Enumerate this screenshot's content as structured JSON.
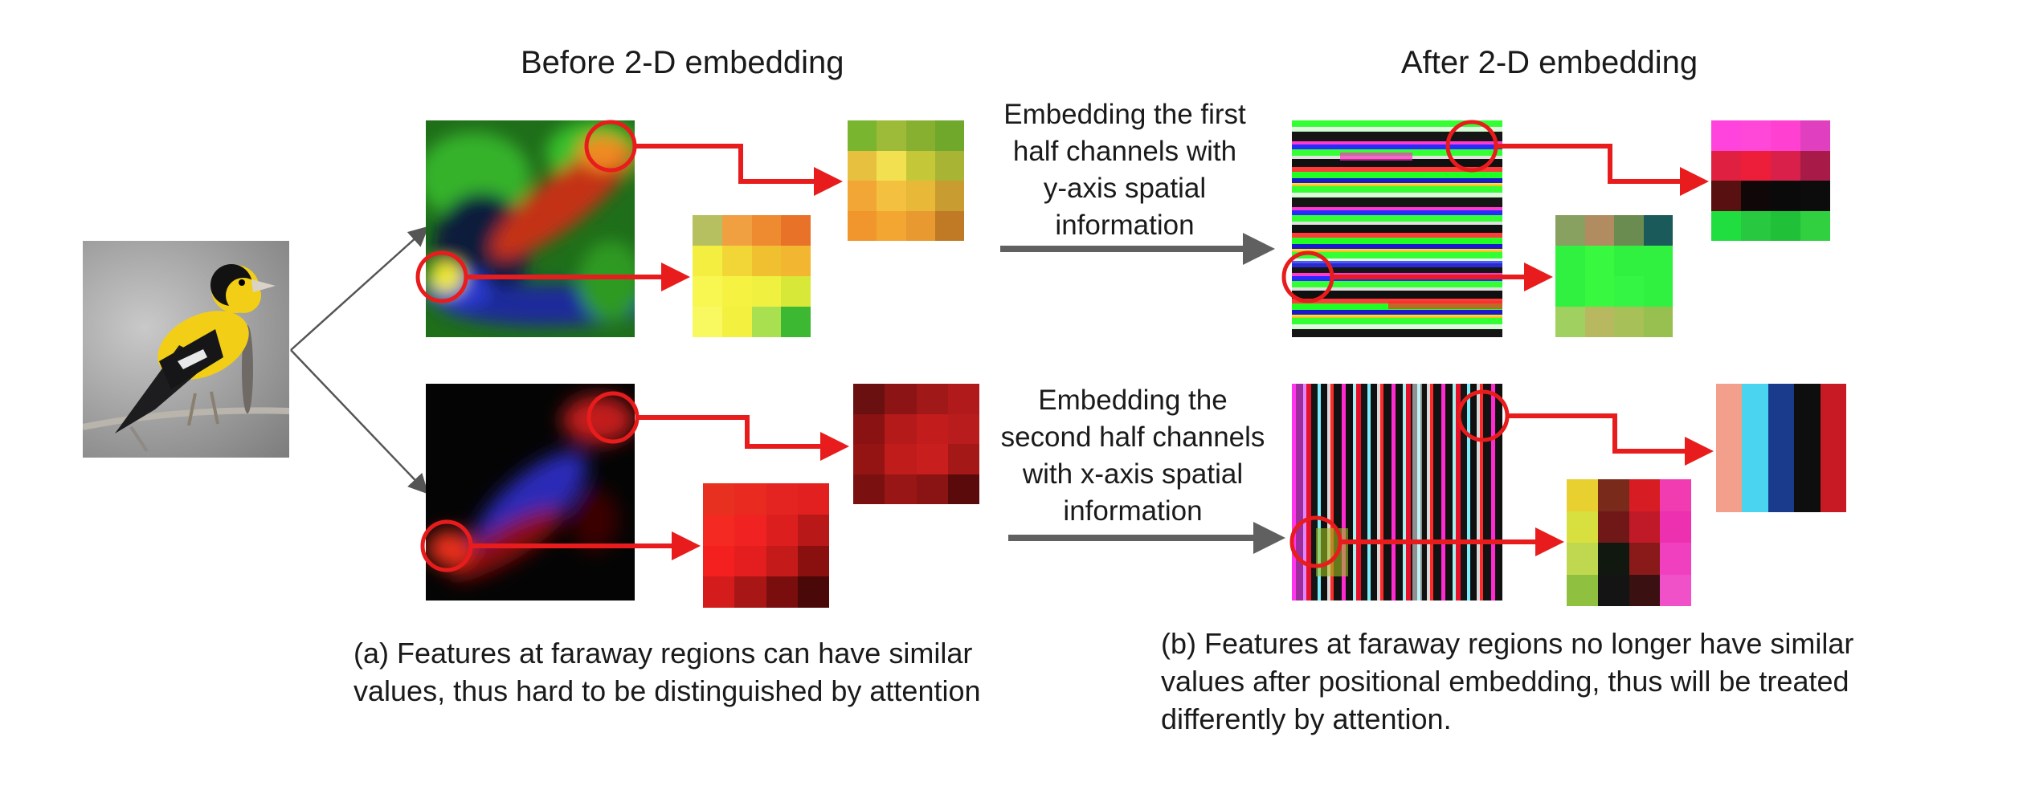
{
  "titles": {
    "before": "Before 2-D embedding",
    "after": "After 2-D embedding"
  },
  "process_labels": {
    "first_half": [
      "Embedding the first",
      "half channels with",
      "y-axis spatial",
      "information"
    ],
    "second_half": [
      "Embedding the",
      "second half channels",
      "with x-axis spatial",
      "information"
    ]
  },
  "captions": {
    "a": [
      "(a) Features at faraway regions can have similar",
      "values, thus hard to be distinguished by attention"
    ],
    "b": [
      "(b) Features at faraway regions no longer have similar",
      "values after positional embedding, thus will be treated",
      "differently by attention."
    ]
  },
  "colors": {
    "highlight": "#e81c1c",
    "process_arrow": "#606060",
    "branch_line": "#555555"
  },
  "images": {
    "input": "bird-photo",
    "before_top": "feature-map-green-red",
    "before_bottom": "feature-map-red-blue",
    "after_top": "horizontal-stripe-map",
    "after_bottom": "vertical-stripe-map"
  }
}
